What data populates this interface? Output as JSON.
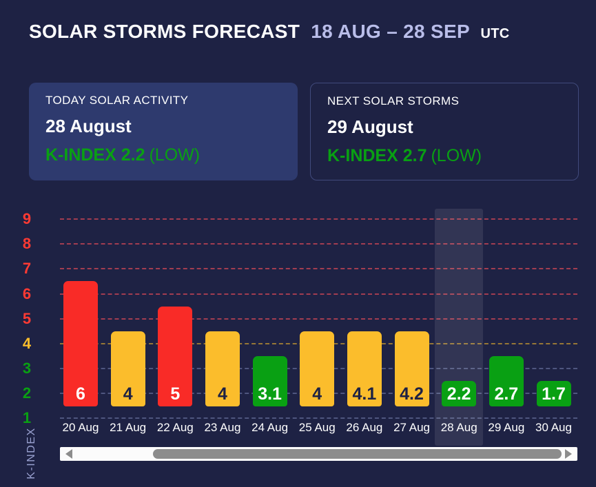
{
  "header": {
    "title_main": "SOLAR STORMS FORECAST",
    "title_range": "18 AUG – 28 SEP",
    "title_suffix": "UTC"
  },
  "cards": {
    "today": {
      "label": "TODAY SOLAR ACTIVITY",
      "date": "28 August",
      "kindex_text": "K-INDEX 2.2",
      "severity": "(LOW)"
    },
    "next": {
      "label": "NEXT SOLAR STORMS",
      "date": "29 August",
      "kindex_text": "K-INDEX 2.7",
      "severity": "(LOW)"
    }
  },
  "chart_data": {
    "type": "bar",
    "title": "",
    "xlabel": "",
    "ylabel": "K-INDEX",
    "ylim": [
      1,
      9
    ],
    "yticks": [
      1,
      2,
      3,
      4,
      5,
      6,
      7,
      8,
      9
    ],
    "grid": "dashed-horizontal",
    "legend_position": "none",
    "categories": [
      "20 Aug",
      "21 Aug",
      "22 Aug",
      "23 Aug",
      "24 Aug",
      "25 Aug",
      "26 Aug",
      "27 Aug",
      "28 Aug",
      "29 Aug",
      "30 Aug"
    ],
    "values": [
      6,
      4,
      5,
      4,
      3.1,
      4,
      4.1,
      4.2,
      2.2,
      2.7,
      1.7
    ],
    "value_labels": [
      "6",
      "4",
      "5",
      "4",
      "3.1",
      "4",
      "4.1",
      "4.2",
      "2.2",
      "2.7",
      "1.7"
    ],
    "highlight_index": 8,
    "highlight_category": "28 Aug",
    "thresholds": {
      "green_below": 4,
      "yellow_below": 5
    },
    "colors": {
      "red": "#f92b27",
      "yellow": "#fbbd2c",
      "green": "#09a013",
      "tick_red": "#ff3a33",
      "tick_yellow": "#fbbd2c",
      "tick_green": "#0aa013",
      "grid_red": "rgba(250,80,90,0.6)",
      "grid_yellow": "rgba(251,189,44,0.55)",
      "grid_blue": "rgba(139,150,200,0.45)",
      "label_dark": "#1e2244",
      "label_light": "#ffffff"
    }
  },
  "theme": {
    "background": "#1e2244",
    "card_fill": "#2e3a6e",
    "card_border": "#414a7c",
    "accent_text": "#b9bde9",
    "green_text": "#09a013"
  }
}
